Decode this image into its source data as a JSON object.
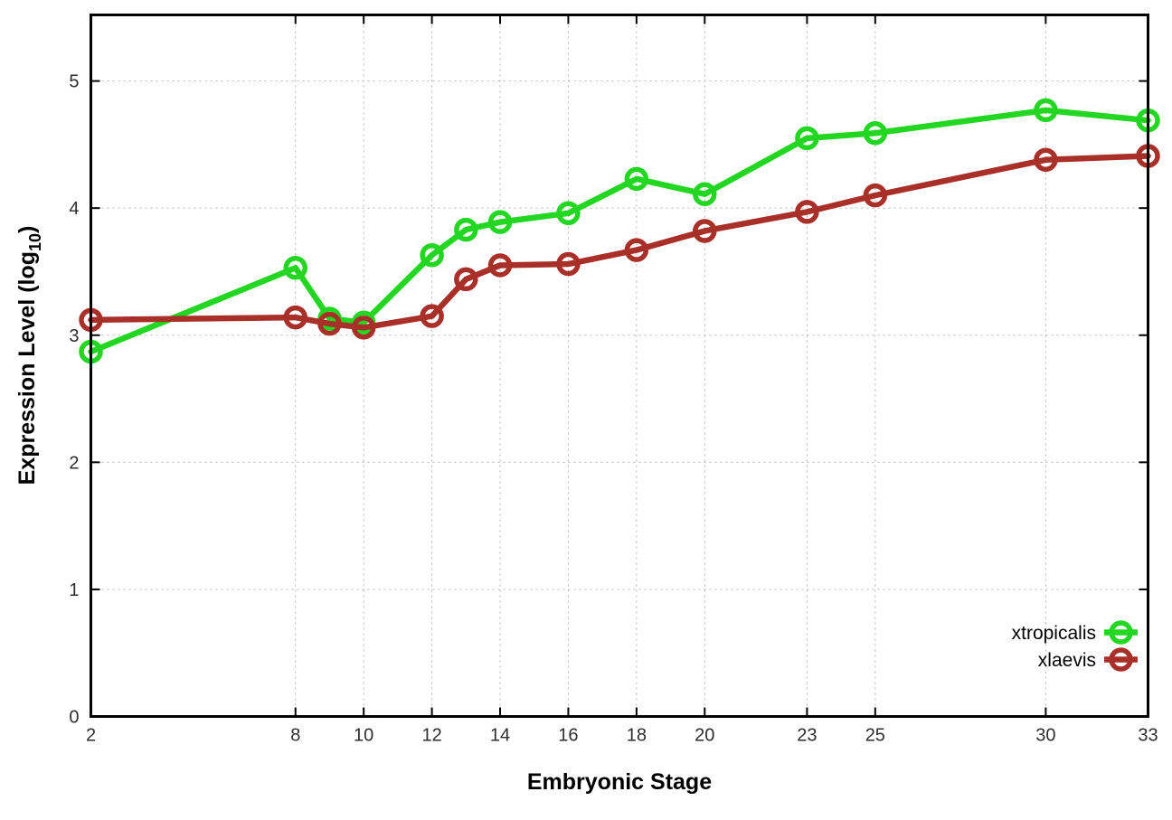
{
  "chart_data": {
    "type": "line",
    "title": "",
    "xlabel": "Embryonic Stage",
    "ylabel_main": "Expression Level (log",
    "ylabel_sub": "10",
    "ylabel_suffix": ")",
    "x": [
      2,
      8,
      9,
      10,
      12,
      13,
      14,
      16,
      18,
      20,
      23,
      25,
      30,
      33
    ],
    "x_ticks": [
      2,
      8,
      10,
      12,
      14,
      16,
      18,
      20,
      23,
      25,
      30,
      33
    ],
    "y_ticks": [
      0,
      1,
      2,
      3,
      4,
      5
    ],
    "xlim": [
      2,
      33
    ],
    "ylim": [
      0,
      5.52
    ],
    "grid": true,
    "legend_position": "inside-right-lower",
    "series": [
      {
        "name": "xtropicalis",
        "color": "#22d622",
        "values": [
          2.87,
          3.53,
          3.13,
          3.1,
          3.63,
          3.83,
          3.89,
          3.96,
          4.23,
          4.11,
          4.55,
          4.59,
          4.77,
          4.69
        ]
      },
      {
        "name": "xlaevis",
        "color": "#a83028",
        "values": [
          3.12,
          3.14,
          3.09,
          3.06,
          3.15,
          3.44,
          3.55,
          3.56,
          3.67,
          3.82,
          3.97,
          4.1,
          4.38,
          4.41
        ]
      }
    ],
    "colors": {
      "axis": "#000000",
      "grid": "#b3b3b3",
      "tick_text": "#2e2e2e",
      "background": "#ffffff"
    }
  }
}
